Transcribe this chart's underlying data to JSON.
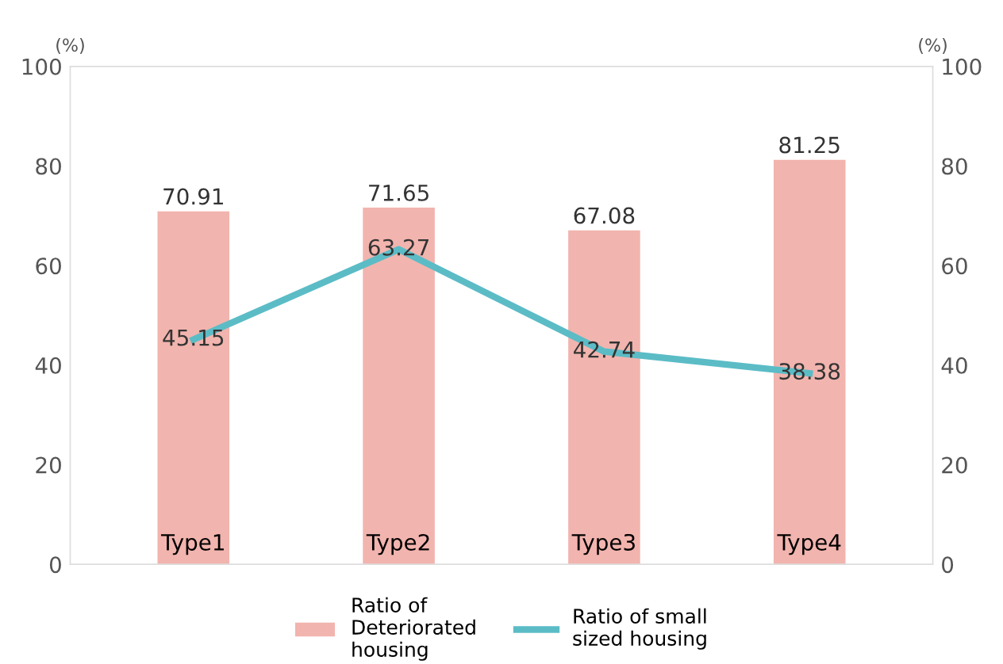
{
  "chart_data": {
    "type": "bar",
    "categories": [
      "Type1",
      "Type2",
      "Type3",
      "Type4"
    ],
    "ylabel": "(%)",
    "y2label": "(%)",
    "ylim": [
      0,
      100
    ],
    "yticks": [
      0,
      20,
      40,
      60,
      80,
      100
    ],
    "y2lim": [
      0,
      100
    ],
    "y2ticks": [
      0,
      20,
      40,
      60,
      80,
      100
    ],
    "series": [
      {
        "name": "Ratio of\nDeteriorated\nhousing",
        "color": "#f2b4ae",
        "values": [
          70.91,
          71.65,
          67.08,
          81.25
        ]
      },
      {
        "name": "Ratio of small\nsized housing",
        "type": "line",
        "color": "#5bbcc6",
        "values": [
          45.15,
          63.27,
          42.74,
          38.38
        ]
      }
    ],
    "data_labels": true,
    "grid": false,
    "legend": "bottom",
    "marker": "none",
    "line_style": "solid"
  }
}
